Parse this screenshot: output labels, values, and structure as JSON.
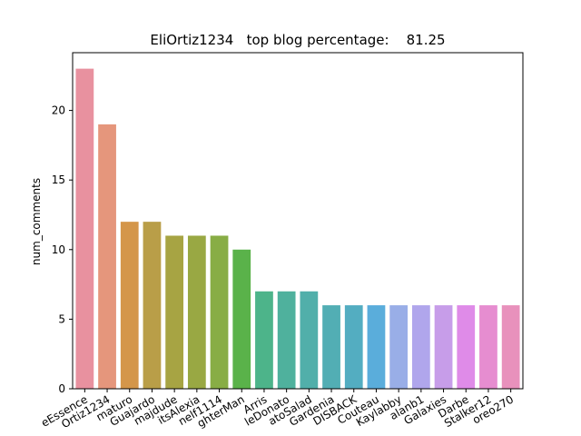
{
  "chart_data": {
    "type": "bar",
    "title": "EliOrtiz1234   top blog percentage:    81.25",
    "xlabel": "",
    "ylabel": "num_comments",
    "ylim": [
      0,
      24.15
    ],
    "yticks": [
      0,
      5,
      10,
      15,
      20
    ],
    "grid": false,
    "categories": [
      "...eEssence",
      "...Ortiz1234",
      "maturo",
      "...Guajardo",
      "...majdude",
      "...itsAlexia",
      "...nelf1114",
      "...ghterMan",
      "Arris",
      "...leDonato",
      "...atoSalad",
      "...Gardenia",
      "...DISBACK",
      "...Couteau",
      "...Kaylabby",
      "alanb1",
      "...Galaxies",
      "Darbe",
      "...Stalker12",
      "...oreo270"
    ],
    "values": [
      23,
      19,
      12,
      12,
      11,
      11,
      11,
      10,
      7,
      7,
      7,
      6,
      6,
      6,
      6,
      6,
      6,
      6,
      6,
      6
    ],
    "colors": [
      "#e8919f",
      "#e5967c",
      "#d4964a",
      "#b99e48",
      "#a7a443",
      "#99a843",
      "#88ad45",
      "#5ab24a",
      "#4db48a",
      "#4fb19d",
      "#51afaa",
      "#52aeb4",
      "#53adc1",
      "#5aaddb",
      "#99aee7",
      "#b0a6ec",
      "#c79de9",
      "#df8be8",
      "#e68dd0",
      "#e891bc"
    ]
  }
}
